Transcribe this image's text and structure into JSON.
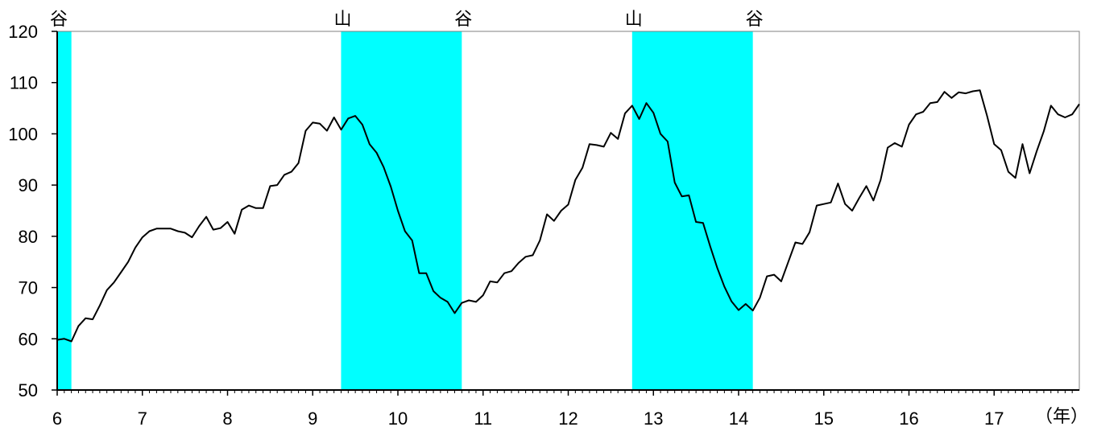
{
  "chart_data": {
    "type": "line",
    "title": "",
    "xlabel": "（年）",
    "ylabel": "",
    "xlim": [
      6.0,
      18.0
    ],
    "ylim": [
      50,
      120
    ],
    "x_ticks": [
      6,
      7,
      8,
      9,
      10,
      11,
      12,
      13,
      14,
      15,
      16,
      17
    ],
    "x_tick_labels": [
      "6",
      "7",
      "8",
      "9",
      "10",
      "11",
      "12",
      "13",
      "14",
      "15",
      "16",
      "17"
    ],
    "y_ticks": [
      50,
      60,
      70,
      80,
      90,
      100,
      110,
      120
    ],
    "y_tick_labels": [
      "50",
      "60",
      "70",
      "80",
      "90",
      "100",
      "110",
      "120"
    ],
    "grid": false,
    "legend": "none",
    "colors": {
      "line": "#000000",
      "recession": "#00ffff",
      "frame": "#808080"
    },
    "recessions": [
      {
        "start": 6.0,
        "end": 6.167
      },
      {
        "start": 9.333,
        "end": 10.75
      },
      {
        "start": 12.75,
        "end": 14.167
      }
    ],
    "markers": [
      {
        "x": 6.0,
        "label": "谷"
      },
      {
        "x": 9.333,
        "label": "山"
      },
      {
        "x": 10.75,
        "label": "谷"
      },
      {
        "x": 12.75,
        "label": "山"
      },
      {
        "x": 14.167,
        "label": "谷"
      }
    ],
    "series": [
      {
        "x": [
          6.0,
          6.083,
          6.167,
          6.25,
          6.333,
          6.417,
          6.5,
          6.583,
          6.667,
          6.75,
          6.833,
          6.917,
          7.0,
          7.083,
          7.167,
          7.25,
          7.333,
          7.417,
          7.5,
          7.583,
          7.667,
          7.75,
          7.833,
          7.917,
          8.0,
          8.083,
          8.167,
          8.25,
          8.333,
          8.417,
          8.5,
          8.583,
          8.667,
          8.75,
          8.833,
          8.917,
          9.0,
          9.083,
          9.167,
          9.25,
          9.333,
          9.417,
          9.5,
          9.583,
          9.667,
          9.75,
          9.833,
          9.917,
          10.0,
          10.083,
          10.167,
          10.25,
          10.333,
          10.417,
          10.5,
          10.583,
          10.667,
          10.75,
          10.833,
          10.917,
          11.0,
          11.083,
          11.167,
          11.25,
          11.333,
          11.417,
          11.5,
          11.583,
          11.667,
          11.75,
          11.833,
          11.917,
          12.0,
          12.083,
          12.167,
          12.25,
          12.333,
          12.417,
          12.5,
          12.583,
          12.667,
          12.75,
          12.833,
          12.917,
          13.0,
          13.083,
          13.167,
          13.25,
          13.333,
          13.417,
          13.5,
          13.583,
          13.667,
          13.75,
          13.833,
          13.917,
          14.0,
          14.083,
          14.167,
          14.25,
          14.333,
          14.417,
          14.5,
          14.583,
          14.667,
          14.75,
          14.833,
          14.917,
          15.0,
          15.083,
          15.167,
          15.25,
          15.333,
          15.417,
          15.5,
          15.583,
          15.667,
          15.75,
          15.833,
          15.917,
          16.0,
          16.083,
          16.167,
          16.25,
          16.333,
          16.417,
          16.5,
          16.583,
          16.667,
          16.75,
          16.833,
          16.917,
          17.0,
          17.083,
          17.167,
          17.25,
          17.333,
          17.417,
          17.5,
          17.583,
          17.667,
          17.75,
          17.833,
          17.917,
          18.0
        ],
        "values": [
          59.8,
          60.0,
          59.5,
          62.5,
          64.0,
          63.8,
          66.5,
          69.5,
          71.0,
          73.0,
          75.0,
          77.8,
          79.8,
          81.0,
          81.5,
          81.5,
          81.5,
          81.0,
          80.7,
          79.8,
          82.0,
          83.8,
          81.3,
          81.6,
          82.8,
          80.5,
          85.2,
          86.0,
          85.5,
          85.5,
          89.8,
          90.0,
          92.0,
          92.6,
          94.3,
          100.6,
          102.2,
          102.0,
          100.6,
          103.2,
          100.8,
          103.0,
          103.5,
          101.8,
          98.0,
          96.3,
          93.5,
          89.7,
          85.0,
          81.0,
          79.2,
          72.8,
          72.8,
          69.3,
          68.0,
          67.2,
          65.0,
          67.0,
          67.5,
          67.2,
          68.5,
          71.2,
          71.0,
          72.8,
          73.2,
          74.8,
          76.0,
          76.3,
          79.2,
          84.3,
          83.0,
          85.0,
          86.2,
          91.0,
          93.4,
          98.0,
          97.8,
          97.5,
          100.2,
          99.0,
          104.0,
          105.5,
          102.9,
          106.0,
          104.1,
          100.0,
          98.5,
          90.5,
          87.8,
          88.0,
          82.8,
          82.6,
          78.0,
          73.8,
          70.2,
          67.3,
          65.6,
          66.8,
          65.5,
          68.0,
          72.2,
          72.5,
          71.2,
          75.0,
          78.8,
          78.5,
          80.8,
          86.0,
          86.3,
          86.6,
          90.3,
          86.3,
          85.0,
          87.5,
          89.8,
          87.0,
          91.0,
          97.3,
          98.2,
          97.5,
          101.8,
          103.8,
          104.3,
          106.0,
          106.2,
          108.2,
          107.0,
          108.1,
          107.9,
          108.3,
          108.5,
          103.5,
          98.0,
          96.8,
          92.6,
          91.4,
          98.0,
          92.3,
          96.6,
          100.5,
          105.5,
          103.8,
          103.2,
          103.8,
          105.8
        ]
      }
    ]
  }
}
